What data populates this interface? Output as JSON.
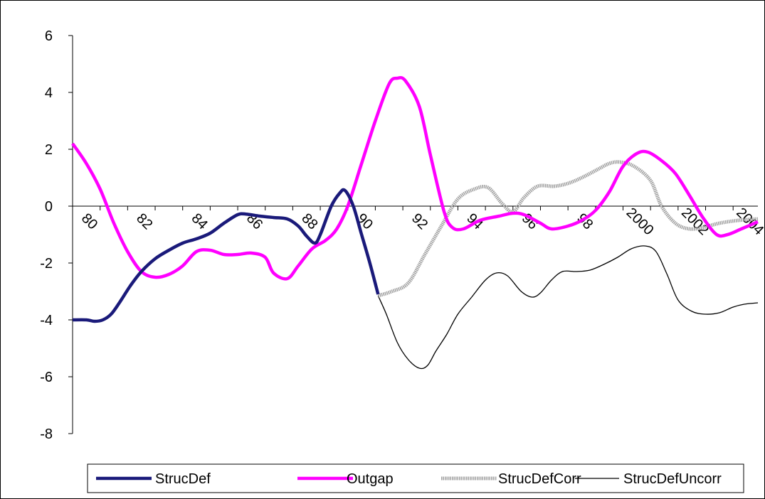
{
  "chart_data": {
    "type": "line",
    "title": "",
    "xlabel": "",
    "ylabel": "",
    "ylim": [
      -8,
      6
    ],
    "xlim": [
      1980,
      2004.9
    ],
    "y_ticks": [
      -8,
      -6,
      -4,
      -2,
      0,
      2,
      4,
      6
    ],
    "y_tick_labels": [
      "-8",
      "-6",
      "-4",
      "-2",
      "0",
      "2",
      "4",
      "6"
    ],
    "x_ticks": [
      1980,
      1982,
      1984,
      1986,
      1988,
      1990,
      1992,
      1994,
      1996,
      1998,
      2000,
      2002,
      2004
    ],
    "x_tick_labels": [
      "80",
      "82",
      "84",
      "86",
      "88",
      "90",
      "92",
      "94",
      "96",
      "98",
      "2000",
      "2002",
      "2004"
    ],
    "grid": false,
    "legend_position": "bottom",
    "series": [
      {
        "name": "StrucDef",
        "color": "#1a1a7a",
        "style": "thick",
        "points": [
          [
            1980,
            -4.0
          ],
          [
            1980.5,
            -4.0
          ],
          [
            1980.8,
            -4.05
          ],
          [
            1981.1,
            -4.0
          ],
          [
            1981.4,
            -3.8
          ],
          [
            1981.7,
            -3.4
          ],
          [
            1982.1,
            -2.8
          ],
          [
            1982.5,
            -2.3
          ],
          [
            1983.0,
            -1.85
          ],
          [
            1983.5,
            -1.55
          ],
          [
            1984.0,
            -1.3
          ],
          [
            1984.5,
            -1.15
          ],
          [
            1985.0,
            -0.95
          ],
          [
            1985.5,
            -0.6
          ],
          [
            1986.0,
            -0.3
          ],
          [
            1986.3,
            -0.28
          ],
          [
            1986.8,
            -0.35
          ],
          [
            1987.3,
            -0.4
          ],
          [
            1987.8,
            -0.45
          ],
          [
            1988.2,
            -0.7
          ],
          [
            1988.5,
            -1.05
          ],
          [
            1988.8,
            -1.3
          ],
          [
            1989.0,
            -1.0
          ],
          [
            1989.4,
            0.0
          ],
          [
            1989.7,
            0.45
          ],
          [
            1989.9,
            0.55
          ],
          [
            1990.2,
            0.0
          ],
          [
            1990.5,
            -1.0
          ],
          [
            1990.8,
            -2.0
          ],
          [
            1991.1,
            -3.1
          ]
        ]
      },
      {
        "name": "Outgap",
        "color": "#ff00ff",
        "style": "thick",
        "points": [
          [
            1980,
            2.2
          ],
          [
            1980.5,
            1.5
          ],
          [
            1981.0,
            0.6
          ],
          [
            1981.5,
            -0.6
          ],
          [
            1982.0,
            -1.6
          ],
          [
            1982.5,
            -2.3
          ],
          [
            1983.0,
            -2.5
          ],
          [
            1983.5,
            -2.4
          ],
          [
            1984.0,
            -2.1
          ],
          [
            1984.5,
            -1.6
          ],
          [
            1985.0,
            -1.55
          ],
          [
            1985.5,
            -1.7
          ],
          [
            1986.0,
            -1.7
          ],
          [
            1986.5,
            -1.65
          ],
          [
            1987.0,
            -1.8
          ],
          [
            1987.3,
            -2.35
          ],
          [
            1987.8,
            -2.55
          ],
          [
            1988.2,
            -2.1
          ],
          [
            1988.7,
            -1.5
          ],
          [
            1989.2,
            -1.2
          ],
          [
            1989.6,
            -0.8
          ],
          [
            1990.0,
            0.0
          ],
          [
            1990.5,
            1.5
          ],
          [
            1991.0,
            3.0
          ],
          [
            1991.5,
            4.3
          ],
          [
            1991.8,
            4.5
          ],
          [
            1992.1,
            4.4
          ],
          [
            1992.6,
            3.5
          ],
          [
            1993.0,
            1.8
          ],
          [
            1993.5,
            -0.2
          ],
          [
            1993.8,
            -0.75
          ],
          [
            1994.2,
            -0.8
          ],
          [
            1994.8,
            -0.5
          ],
          [
            1995.5,
            -0.35
          ],
          [
            1996.0,
            -0.25
          ],
          [
            1996.4,
            -0.3
          ],
          [
            1997.0,
            -0.6
          ],
          [
            1997.4,
            -0.8
          ],
          [
            1998.0,
            -0.7
          ],
          [
            1998.5,
            -0.5
          ],
          [
            1999.0,
            -0.15
          ],
          [
            1999.5,
            0.5
          ],
          [
            2000.0,
            1.4
          ],
          [
            2000.5,
            1.85
          ],
          [
            2000.9,
            1.9
          ],
          [
            2001.4,
            1.6
          ],
          [
            2001.9,
            1.15
          ],
          [
            2002.4,
            0.4
          ],
          [
            2002.9,
            -0.4
          ],
          [
            2003.4,
            -1.0
          ],
          [
            2003.8,
            -1.0
          ],
          [
            2004.3,
            -0.8
          ],
          [
            2004.9,
            -0.55
          ]
        ]
      },
      {
        "name": "StrucDefCorr",
        "color": "#a0a0a0",
        "style": "dotted",
        "points": [
          [
            1991.1,
            -3.15
          ],
          [
            1991.6,
            -3.0
          ],
          [
            1992.2,
            -2.7
          ],
          [
            1992.8,
            -1.7
          ],
          [
            1993.4,
            -0.7
          ],
          [
            1994.0,
            0.25
          ],
          [
            1994.6,
            0.6
          ],
          [
            1995.1,
            0.65
          ],
          [
            1995.6,
            0.1
          ],
          [
            1996.0,
            -0.2
          ],
          [
            1996.4,
            0.3
          ],
          [
            1996.9,
            0.7
          ],
          [
            1997.5,
            0.7
          ],
          [
            1998.0,
            0.8
          ],
          [
            1998.5,
            1.0
          ],
          [
            1999.0,
            1.25
          ],
          [
            1999.5,
            1.5
          ],
          [
            1999.9,
            1.55
          ],
          [
            2000.4,
            1.4
          ],
          [
            2001.0,
            0.9
          ],
          [
            2001.4,
            0.0
          ],
          [
            2001.9,
            -0.6
          ],
          [
            2002.4,
            -0.8
          ],
          [
            2002.9,
            -0.75
          ],
          [
            2003.5,
            -0.6
          ],
          [
            2004.2,
            -0.5
          ],
          [
            2004.9,
            -0.45
          ]
        ]
      },
      {
        "name": "StrucDefUncorr",
        "color": "#000000",
        "style": "thin",
        "points": [
          [
            1991.1,
            -3.15
          ],
          [
            1991.4,
            -3.8
          ],
          [
            1991.8,
            -4.8
          ],
          [
            1992.2,
            -5.4
          ],
          [
            1992.6,
            -5.7
          ],
          [
            1992.9,
            -5.6
          ],
          [
            1993.2,
            -5.1
          ],
          [
            1993.6,
            -4.5
          ],
          [
            1994.0,
            -3.8
          ],
          [
            1994.5,
            -3.2
          ],
          [
            1995.0,
            -2.6
          ],
          [
            1995.4,
            -2.35
          ],
          [
            1995.8,
            -2.45
          ],
          [
            1996.3,
            -3.0
          ],
          [
            1996.7,
            -3.2
          ],
          [
            1997.0,
            -3.05
          ],
          [
            1997.4,
            -2.6
          ],
          [
            1997.8,
            -2.3
          ],
          [
            1998.3,
            -2.3
          ],
          [
            1998.8,
            -2.25
          ],
          [
            1999.3,
            -2.05
          ],
          [
            1999.8,
            -1.8
          ],
          [
            2000.3,
            -1.5
          ],
          [
            2000.8,
            -1.4
          ],
          [
            2001.2,
            -1.6
          ],
          [
            2001.6,
            -2.4
          ],
          [
            2002.0,
            -3.3
          ],
          [
            2002.5,
            -3.7
          ],
          [
            2003.0,
            -3.8
          ],
          [
            2003.5,
            -3.75
          ],
          [
            2004.0,
            -3.55
          ],
          [
            2004.4,
            -3.45
          ],
          [
            2004.9,
            -3.4
          ]
        ]
      }
    ]
  }
}
